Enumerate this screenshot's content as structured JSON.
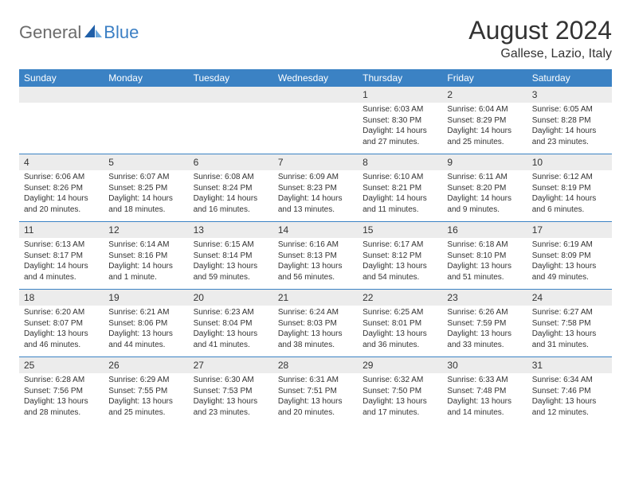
{
  "logo": {
    "general": "General",
    "blue": "Blue"
  },
  "title": "August 2024",
  "location": "Gallese, Lazio, Italy",
  "colors": {
    "header_bg": "#3b82c4",
    "header_text": "#ffffff",
    "numrow_bg": "#ececec",
    "border": "#3b82c4",
    "text": "#333333",
    "logo_gray": "#6b6b6b",
    "logo_blue": "#3b7fc4"
  },
  "weekdays": [
    "Sunday",
    "Monday",
    "Tuesday",
    "Wednesday",
    "Thursday",
    "Friday",
    "Saturday"
  ],
  "weeks": [
    {
      "nums": [
        "",
        "",
        "",
        "",
        "1",
        "2",
        "3"
      ],
      "details": [
        "",
        "",
        "",
        "",
        "Sunrise: 6:03 AM\nSunset: 8:30 PM\nDaylight: 14 hours and 27 minutes.",
        "Sunrise: 6:04 AM\nSunset: 8:29 PM\nDaylight: 14 hours and 25 minutes.",
        "Sunrise: 6:05 AM\nSunset: 8:28 PM\nDaylight: 14 hours and 23 minutes."
      ]
    },
    {
      "nums": [
        "4",
        "5",
        "6",
        "7",
        "8",
        "9",
        "10"
      ],
      "details": [
        "Sunrise: 6:06 AM\nSunset: 8:26 PM\nDaylight: 14 hours and 20 minutes.",
        "Sunrise: 6:07 AM\nSunset: 8:25 PM\nDaylight: 14 hours and 18 minutes.",
        "Sunrise: 6:08 AM\nSunset: 8:24 PM\nDaylight: 14 hours and 16 minutes.",
        "Sunrise: 6:09 AM\nSunset: 8:23 PM\nDaylight: 14 hours and 13 minutes.",
        "Sunrise: 6:10 AM\nSunset: 8:21 PM\nDaylight: 14 hours and 11 minutes.",
        "Sunrise: 6:11 AM\nSunset: 8:20 PM\nDaylight: 14 hours and 9 minutes.",
        "Sunrise: 6:12 AM\nSunset: 8:19 PM\nDaylight: 14 hours and 6 minutes."
      ]
    },
    {
      "nums": [
        "11",
        "12",
        "13",
        "14",
        "15",
        "16",
        "17"
      ],
      "details": [
        "Sunrise: 6:13 AM\nSunset: 8:17 PM\nDaylight: 14 hours and 4 minutes.",
        "Sunrise: 6:14 AM\nSunset: 8:16 PM\nDaylight: 14 hours and 1 minute.",
        "Sunrise: 6:15 AM\nSunset: 8:14 PM\nDaylight: 13 hours and 59 minutes.",
        "Sunrise: 6:16 AM\nSunset: 8:13 PM\nDaylight: 13 hours and 56 minutes.",
        "Sunrise: 6:17 AM\nSunset: 8:12 PM\nDaylight: 13 hours and 54 minutes.",
        "Sunrise: 6:18 AM\nSunset: 8:10 PM\nDaylight: 13 hours and 51 minutes.",
        "Sunrise: 6:19 AM\nSunset: 8:09 PM\nDaylight: 13 hours and 49 minutes."
      ]
    },
    {
      "nums": [
        "18",
        "19",
        "20",
        "21",
        "22",
        "23",
        "24"
      ],
      "details": [
        "Sunrise: 6:20 AM\nSunset: 8:07 PM\nDaylight: 13 hours and 46 minutes.",
        "Sunrise: 6:21 AM\nSunset: 8:06 PM\nDaylight: 13 hours and 44 minutes.",
        "Sunrise: 6:23 AM\nSunset: 8:04 PM\nDaylight: 13 hours and 41 minutes.",
        "Sunrise: 6:24 AM\nSunset: 8:03 PM\nDaylight: 13 hours and 38 minutes.",
        "Sunrise: 6:25 AM\nSunset: 8:01 PM\nDaylight: 13 hours and 36 minutes.",
        "Sunrise: 6:26 AM\nSunset: 7:59 PM\nDaylight: 13 hours and 33 minutes.",
        "Sunrise: 6:27 AM\nSunset: 7:58 PM\nDaylight: 13 hours and 31 minutes."
      ]
    },
    {
      "nums": [
        "25",
        "26",
        "27",
        "28",
        "29",
        "30",
        "31"
      ],
      "details": [
        "Sunrise: 6:28 AM\nSunset: 7:56 PM\nDaylight: 13 hours and 28 minutes.",
        "Sunrise: 6:29 AM\nSunset: 7:55 PM\nDaylight: 13 hours and 25 minutes.",
        "Sunrise: 6:30 AM\nSunset: 7:53 PM\nDaylight: 13 hours and 23 minutes.",
        "Sunrise: 6:31 AM\nSunset: 7:51 PM\nDaylight: 13 hours and 20 minutes.",
        "Sunrise: 6:32 AM\nSunset: 7:50 PM\nDaylight: 13 hours and 17 minutes.",
        "Sunrise: 6:33 AM\nSunset: 7:48 PM\nDaylight: 13 hours and 14 minutes.",
        "Sunrise: 6:34 AM\nSunset: 7:46 PM\nDaylight: 13 hours and 12 minutes."
      ]
    }
  ]
}
